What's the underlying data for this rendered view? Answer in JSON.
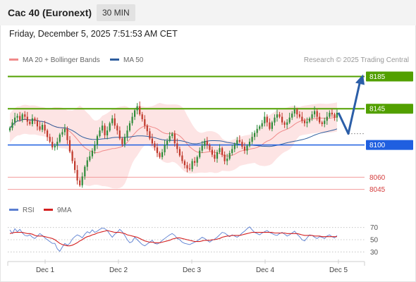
{
  "header": {
    "instrument": "Cac 40 (Euronext)",
    "timeframe": "30 MIN",
    "datetime": "Friday, December 5, 2025 7:51:53 AM CET",
    "copyright": "Research © 2025 Trading Central"
  },
  "legend": {
    "bollinger": {
      "label": "MA 20 + Bollinger Bands",
      "color": "#f08a8a"
    },
    "ma50": {
      "label": "MA 50",
      "color": "#2e5e9e"
    },
    "rsi": {
      "label": "RSI",
      "color": "#5b7fd1"
    },
    "rsi_ma": {
      "label": "9MA",
      "color": "#d42020"
    }
  },
  "colors": {
    "up_candle": "#2e8b3a",
    "down_candle": "#c0392b",
    "resistance": "#52a000",
    "pivot": "#1f5fe0",
    "support": "#f29b9b",
    "support_text": "#d43c3c",
    "band_fill": "#fde4e4",
    "scenario_arrow": "#2b5ea8"
  },
  "chart_data": [
    {
      "type": "candlestick",
      "title": "",
      "x_labels": [
        "Dec 1",
        "Dec 2",
        "Dec 3",
        "Dec 4",
        "Dec 5"
      ],
      "ylim": [
        8035,
        8195
      ],
      "levels": [
        {
          "value": 8185,
          "label": "8185",
          "kind": "resistance"
        },
        {
          "value": 8145,
          "label": "8145",
          "kind": "resistance"
        },
        {
          "value": 8100,
          "label": "8100",
          "kind": "pivot"
        },
        {
          "value": 8060,
          "label": "8060",
          "kind": "support"
        },
        {
          "value": 8045,
          "label": "8045",
          "kind": "support"
        }
      ],
      "scenario": {
        "from": 8140,
        "via": 8114,
        "to": 8185
      },
      "close_series": [
        8121,
        8128,
        8134,
        8136,
        8131,
        8138,
        8135,
        8129,
        8126,
        8133,
        8130,
        8123,
        8119,
        8125,
        8118,
        8110,
        8104,
        8097,
        8099,
        8104,
        8113,
        8116,
        8120,
        8106,
        8092,
        8080,
        8069,
        8056,
        8050,
        8061,
        8073,
        8081,
        8086,
        8093,
        8100,
        8111,
        8118,
        8124,
        8112,
        8118,
        8127,
        8133,
        8124,
        8118,
        8108,
        8101,
        8110,
        8118,
        8127,
        8135,
        8143,
        8148,
        8138,
        8132,
        8124,
        8117,
        8108,
        8102,
        8097,
        8090,
        8085,
        8091,
        8100,
        8105,
        8111,
        8114,
        8102,
        8095,
        8087,
        8080,
        8075,
        8071,
        8070,
        8080,
        8078,
        8085,
        8093,
        8099,
        8105,
        8100,
        8094,
        8088,
        8083,
        8091,
        8096,
        8088,
        8080,
        8083,
        8090,
        8095,
        8101,
        8106,
        8104,
        8098,
        8093,
        8099,
        8104,
        8110,
        8115,
        8120,
        8123,
        8127,
        8135,
        8128,
        8120,
        8128,
        8134,
        8138,
        8135,
        8128,
        8125,
        8128,
        8134,
        8139,
        8144,
        8138,
        8135,
        8130,
        8127,
        8129,
        8133,
        8138,
        8142,
        8135,
        8128,
        8126,
        8130,
        8135,
        8140,
        8138,
        8134,
        8140
      ]
    },
    {
      "type": "line",
      "title": "",
      "x_labels": [
        "Dec 1",
        "Dec 2",
        "Dec 3",
        "Dec 4",
        "Dec 5"
      ],
      "ylim": [
        20,
        80
      ],
      "y_ticks": [
        70,
        50,
        30
      ],
      "series": [
        {
          "name": "RSI",
          "values": [
            66,
            60,
            68,
            63,
            67,
            61,
            57,
            56,
            58,
            54,
            52,
            56,
            60,
            57,
            53,
            50,
            47,
            44,
            44,
            35,
            31,
            38,
            44,
            41,
            44,
            51,
            55,
            58,
            56,
            53,
            59,
            63,
            61,
            66,
            62,
            64,
            67,
            69,
            68,
            65,
            59,
            54,
            59,
            62,
            67,
            63,
            57,
            50,
            45,
            47,
            54,
            50,
            46,
            42,
            40,
            43,
            46,
            49,
            44,
            43,
            45,
            49,
            52,
            55,
            58,
            60,
            57,
            52,
            50,
            46,
            44,
            43,
            42,
            44,
            46,
            48,
            51,
            54,
            52,
            49,
            46,
            49,
            51,
            54,
            58,
            62,
            61,
            58,
            55,
            58,
            56,
            54,
            57,
            61,
            64,
            68,
            71,
            66,
            62,
            60,
            58,
            61,
            63,
            65,
            62,
            60,
            58,
            57,
            60,
            62,
            59,
            56,
            58,
            61,
            64,
            59,
            55,
            50,
            48,
            53,
            58,
            57,
            54,
            52,
            55,
            54,
            52,
            56,
            58,
            55,
            53,
            57
          ]
        },
        {
          "name": "9MA",
          "values": [
            60,
            61,
            62,
            62,
            62,
            62,
            61,
            60,
            60,
            59,
            57,
            56,
            56,
            56,
            55,
            54,
            53,
            52,
            50,
            47,
            44,
            42,
            41,
            40,
            40,
            41,
            43,
            45,
            48,
            50,
            53,
            55,
            56,
            58,
            59,
            61,
            62,
            63,
            64,
            65,
            64,
            63,
            62,
            62,
            62,
            61,
            60,
            58,
            57,
            56,
            55,
            54,
            52,
            50,
            48,
            47,
            46,
            46,
            45,
            45,
            45,
            46,
            47,
            48,
            49,
            51,
            52,
            53,
            53,
            52,
            51,
            50,
            49,
            48,
            47,
            47,
            47,
            48,
            49,
            49,
            49,
            50,
            50,
            51,
            52,
            54,
            55,
            56,
            56,
            57,
            57,
            57,
            57,
            58,
            59,
            60,
            61,
            62,
            62,
            62,
            62,
            62,
            62,
            62,
            62,
            62,
            61,
            61,
            61,
            61,
            61,
            60,
            60,
            60,
            60,
            60,
            59,
            58,
            57,
            57,
            57,
            57,
            56,
            56,
            56,
            55,
            55,
            55,
            55,
            55,
            55,
            55
          ]
        }
      ]
    }
  ]
}
